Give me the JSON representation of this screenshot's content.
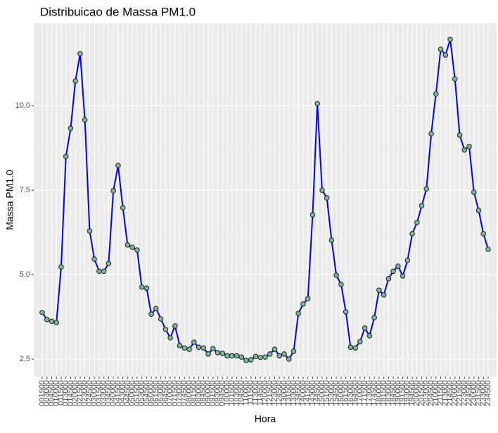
{
  "chart_data": {
    "type": "line",
    "title": "Distribuicao de Massa PM1.0",
    "x_label": "Hora",
    "y_label": "Massa PM1.0",
    "categories": [
      "001500",
      "003000",
      "004500",
      "010000",
      "011500",
      "013000",
      "014500",
      "020000",
      "021500",
      "023000",
      "024500",
      "030000",
      "031500",
      "033000",
      "034500",
      "040000",
      "041500",
      "043000",
      "044500",
      "050000",
      "051500",
      "053000",
      "054500",
      "060000",
      "061500",
      "063000",
      "064500",
      "070000",
      "071500",
      "073000",
      "074500",
      "080000",
      "081500",
      "083000",
      "084500",
      "090000",
      "091500",
      "093000",
      "094500",
      "100000",
      "101500",
      "103000",
      "104500",
      "110000",
      "111500",
      "113000",
      "114500",
      "120000",
      "121500",
      "123000",
      "124500",
      "130000",
      "131500",
      "133000",
      "134500",
      "140000",
      "141500",
      "143000",
      "144500",
      "150000",
      "151500",
      "153000",
      "154500",
      "160000",
      "161500",
      "163000",
      "164500",
      "170000",
      "171500",
      "173000",
      "174500",
      "180000",
      "181500",
      "183000",
      "184500",
      "190000",
      "191500",
      "193000",
      "194500",
      "200000",
      "201500",
      "203000",
      "204500",
      "210000",
      "211500",
      "213000",
      "214500",
      "220000",
      "221500",
      "223000",
      "224500",
      "230000",
      "231500",
      "233000",
      "234500"
    ],
    "series": [
      {
        "name": "Massa PM1.0",
        "color": "#0000ff",
        "marker_color": "#7fb79a",
        "values": [
          3.88,
          3.67,
          3.62,
          3.58,
          5.23,
          8.5,
          9.33,
          10.73,
          11.54,
          9.58,
          6.29,
          5.46,
          5.1,
          5.1,
          5.33,
          7.48,
          8.23,
          6.98,
          5.88,
          5.81,
          5.73,
          4.63,
          4.6,
          3.83,
          4.0,
          3.69,
          3.38,
          3.13,
          3.48,
          2.9,
          2.83,
          2.79,
          3.0,
          2.85,
          2.83,
          2.65,
          2.81,
          2.69,
          2.67,
          2.6,
          2.6,
          2.6,
          2.56,
          2.46,
          2.48,
          2.58,
          2.55,
          2.56,
          2.65,
          2.79,
          2.6,
          2.65,
          2.5,
          2.73,
          3.85,
          4.13,
          4.29,
          6.77,
          10.06,
          7.5,
          7.27,
          6.02,
          4.98,
          4.71,
          3.9,
          2.85,
          2.83,
          3.02,
          3.42,
          3.19,
          3.73,
          4.54,
          4.4,
          4.88,
          5.1,
          5.25,
          4.96,
          5.42,
          6.21,
          6.54,
          7.04,
          7.54,
          9.17,
          10.35,
          11.67,
          11.5,
          11.96,
          10.79,
          9.13,
          8.69,
          8.79,
          7.44,
          6.9,
          6.21,
          5.75
        ]
      }
    ],
    "ylim": [
      1.98,
      12.44
    ],
    "yticks": [
      {
        "value": 2.5,
        "label": "2.5"
      },
      {
        "value": 5,
        "label": "5.0"
      },
      {
        "value": 7.5,
        "label": "7.5"
      },
      {
        "value": 10,
        "label": "10.0"
      }
    ],
    "grid": true
  }
}
